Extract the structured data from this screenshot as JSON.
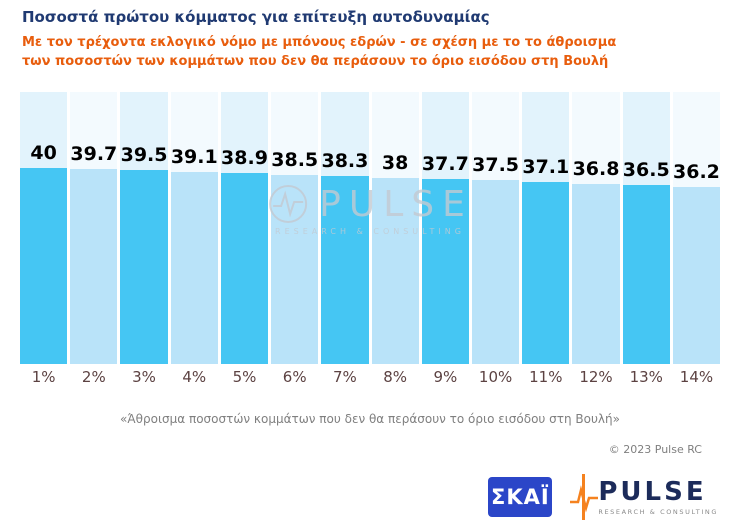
{
  "header": {
    "title": "Ποσοστά πρώτου κόμματος για επίτευξη αυτοδυναμίας",
    "subtitle_line1": "Με τον τρέχοντα εκλογικό νόμο με μπόνους εδρών - σε σχέση με το το άθροισμα",
    "subtitle_line2": "των ποσοστών των κομμάτων που δεν θα περάσουν το όριο εισόδου στη Βουλή"
  },
  "chart_data": {
    "type": "bar",
    "categories": [
      "1%",
      "2%",
      "3%",
      "4%",
      "5%",
      "6%",
      "7%",
      "8%",
      "9%",
      "10%",
      "11%",
      "12%",
      "13%",
      "14%"
    ],
    "values": [
      40,
      39.7,
      39.5,
      39.1,
      38.9,
      38.5,
      38.3,
      38,
      37.7,
      37.5,
      37.1,
      36.8,
      36.5,
      36.2
    ],
    "title": "Ποσοστά πρώτου κόμματος για επίτευξη αυτοδυναμίας",
    "xlabel": "",
    "ylabel": "",
    "ylim": [
      0,
      55
    ],
    "grid": false,
    "legend": "none",
    "annotation": "«Άθροισμα ποσοστών κομμάτων που δεν θα περάσουν το όριο εισόδου στη Βουλή»",
    "bar_colors_alternate": [
      "#45c6f3",
      "#b9e3f9"
    ],
    "column_bg_alternate": [
      "#e2f3fc",
      "#f3fafe"
    ]
  },
  "footnote": "«Άθροισμα ποσοστών κομμάτων που δεν θα περάσουν το όριο εισόδου στη Βουλή»",
  "copyright": "© 2023 Pulse RC",
  "watermark": {
    "name": "PULSE",
    "sub": "RESEARCH & CONSULTING"
  },
  "logos": {
    "skai": "ΣΚΑΪ",
    "pulse": "PULSE",
    "pulse_sub": "RESEARCH & CONSULTING"
  },
  "colors": {
    "title": "#203a72",
    "subtitle": "#e85d0d",
    "value_label": "#000000",
    "x_label": "#5c4242",
    "footnote": "#7f7f7f",
    "skai_bg": "#2b46c8",
    "pulse_orange": "#f5821f",
    "pulse_navy": "#1c2b5a"
  }
}
